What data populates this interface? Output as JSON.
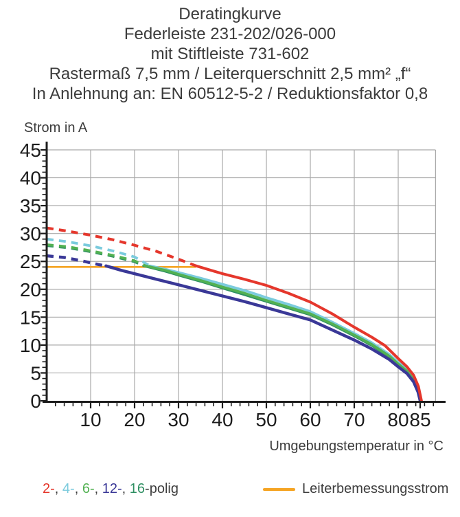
{
  "title": {
    "lines": [
      "Deratingkurve",
      "Federleiste 231-202/026-000",
      "mit Stiftleiste 731-602",
      "Rastermaß 7,5 mm / Leiterquerschnitt 2,5 mm² „f“",
      "In Anlehnung an: EN 60512-5-2 / Reduktionsfaktor 0,8"
    ]
  },
  "legend": {
    "poles": {
      "items": [
        {
          "label": "2-",
          "color": "#e5372c"
        },
        {
          "label": "4-",
          "color": "#7bcbdd"
        },
        {
          "label": "6-",
          "color": "#52b152"
        },
        {
          "label": "12-",
          "color": "#3a3897"
        },
        {
          "label": "16",
          "color": "#2e8f62"
        }
      ],
      "separator": ", ",
      "suffix": "-polig",
      "text_color": "#3e3e3e"
    },
    "rated": {
      "label": "Leiterbemessungsstrom",
      "color": "#f5a423"
    }
  },
  "chart_data": {
    "type": "line",
    "title": "Deratingkurve",
    "xlabel": "Umgebungstemperatur in °C",
    "ylabel": "Strom in A",
    "xlim": [
      0,
      88.5
    ],
    "ylim": [
      0,
      45
    ],
    "x_ticks": [
      10,
      20,
      30,
      40,
      50,
      60,
      70,
      80,
      85
    ],
    "y_ticks": [
      0,
      5,
      10,
      15,
      20,
      25,
      30,
      35,
      40,
      45
    ],
    "x_minor_step": 2,
    "y_minor_step": 1,
    "grid": true,
    "grid_color": "#a9a9a9",
    "axis_color": "#1c1c1c",
    "legend_position": "bottom",
    "rated_current_A": 24,
    "curve_note": "dashed = above rated conductor current (24 A), solid = usable derated range",
    "series": [
      {
        "name": "Leiterbemessungsstrom",
        "color": "#f5a423",
        "width": 2.6,
        "segments": [
          {
            "style": "solid",
            "points": [
              [
                0,
                24
              ],
              [
                33.8,
                24
              ]
            ]
          }
        ]
      },
      {
        "name": "16-polig",
        "color": "#2e8f62",
        "width": 3.2,
        "segments": [
          {
            "style": "dashed",
            "points": [
              [
                0,
                27.8
              ],
              [
                5,
                27.4
              ],
              [
                10,
                26.7
              ],
              [
                15,
                25.9
              ],
              [
                20,
                24.9
              ],
              [
                22,
                24.2
              ]
            ]
          },
          {
            "style": "solid",
            "points": [
              [
                22,
                24.2
              ],
              [
                27,
                23.2
              ],
              [
                30,
                22.5
              ],
              [
                35,
                21.4
              ],
              [
                40,
                20.2
              ],
              [
                45,
                19.0
              ],
              [
                50,
                17.8
              ],
              [
                55,
                16.6
              ],
              [
                60,
                15.4
              ],
              [
                65,
                13.6
              ],
              [
                70,
                11.6
              ],
              [
                74,
                9.9
              ],
              [
                78,
                7.8
              ],
              [
                80,
                6.4
              ],
              [
                82,
                5.1
              ],
              [
                83.5,
                3.6
              ],
              [
                84.6,
                1.5
              ],
              [
                85.05,
                0
              ]
            ]
          }
        ]
      },
      {
        "name": "4-polig",
        "color": "#7bcbdd",
        "width": 3.8,
        "segments": [
          {
            "style": "dashed",
            "points": [
              [
                0,
                29
              ],
              [
                5,
                28.5
              ],
              [
                10,
                27.8
              ],
              [
                15,
                26.9
              ],
              [
                20,
                25.8
              ],
              [
                23.5,
                24.2
              ]
            ]
          },
          {
            "style": "solid",
            "points": [
              [
                23.5,
                24.2
              ],
              [
                27,
                23.6
              ],
              [
                30,
                23.0
              ],
              [
                35,
                22.0
              ],
              [
                40,
                20.9
              ],
              [
                45,
                19.8
              ],
              [
                50,
                18.5
              ],
              [
                55,
                17.3
              ],
              [
                60,
                16.0
              ],
              [
                65,
                14.1
              ],
              [
                70,
                12.1
              ],
              [
                74,
                10.4
              ],
              [
                78,
                8.3
              ],
              [
                80,
                6.9
              ],
              [
                82,
                5.6
              ],
              [
                83.5,
                4.0
              ],
              [
                84.6,
                2.0
              ],
              [
                85.15,
                0
              ]
            ]
          }
        ]
      },
      {
        "name": "6-polig",
        "color": "#52b152",
        "width": 3.8,
        "segments": [
          {
            "style": "dashed",
            "points": [
              [
                0,
                28
              ],
              [
                5,
                27.6
              ],
              [
                10,
                26.9
              ],
              [
                15,
                26.1
              ],
              [
                20,
                25.1
              ],
              [
                22.5,
                24.2
              ]
            ]
          },
          {
            "style": "solid",
            "points": [
              [
                22.5,
                24.2
              ],
              [
                27,
                23.4
              ],
              [
                30,
                22.7
              ],
              [
                35,
                21.6
              ],
              [
                40,
                20.4
              ],
              [
                45,
                19.3
              ],
              [
                50,
                18.0
              ],
              [
                55,
                16.8
              ],
              [
                60,
                15.6
              ],
              [
                65,
                13.8
              ],
              [
                70,
                11.8
              ],
              [
                74,
                10.1
              ],
              [
                78,
                8.0
              ],
              [
                80,
                6.6
              ],
              [
                82,
                5.3
              ],
              [
                83.5,
                3.8
              ],
              [
                84.6,
                1.8
              ],
              [
                85.1,
                0
              ]
            ]
          }
        ]
      },
      {
        "name": "12-polig",
        "color": "#3a3897",
        "width": 4.4,
        "segments": [
          {
            "style": "dashed",
            "points": [
              [
                0,
                26
              ],
              [
                4,
                25.7
              ],
              [
                8,
                25.1
              ],
              [
                12,
                24.4
              ],
              [
                13.5,
                24.2
              ]
            ]
          },
          {
            "style": "solid",
            "points": [
              [
                13.5,
                24.2
              ],
              [
                17,
                23.4
              ],
              [
                20,
                22.8
              ],
              [
                25,
                21.8
              ],
              [
                30,
                20.8
              ],
              [
                35,
                19.8
              ],
              [
                40,
                18.8
              ],
              [
                45,
                17.8
              ],
              [
                50,
                16.7
              ],
              [
                55,
                15.6
              ],
              [
                60,
                14.5
              ],
              [
                65,
                12.7
              ],
              [
                70,
                10.9
              ],
              [
                74,
                9.3
              ],
              [
                78,
                7.4
              ],
              [
                80,
                6.1
              ],
              [
                82,
                4.9
              ],
              [
                83.5,
                3.4
              ],
              [
                84.5,
                1.6
              ],
              [
                85.0,
                0
              ]
            ]
          }
        ]
      },
      {
        "name": "2-polig",
        "color": "#e5372c",
        "width": 4.0,
        "segments": [
          {
            "style": "dashed",
            "points": [
              [
                0,
                31
              ],
              [
                5,
                30.4
              ],
              [
                10,
                29.7
              ],
              [
                15,
                28.9
              ],
              [
                20,
                27.9
              ],
              [
                25,
                26.8
              ],
              [
                30,
                25.4
              ],
              [
                34,
                24.2
              ]
            ]
          },
          {
            "style": "solid",
            "points": [
              [
                34,
                24.2
              ],
              [
                37,
                23.5
              ],
              [
                40,
                22.8
              ],
              [
                45,
                21.8
              ],
              [
                50,
                20.7
              ],
              [
                55,
                19.3
              ],
              [
                60,
                17.7
              ],
              [
                65,
                15.6
              ],
              [
                70,
                13.2
              ],
              [
                74,
                11.4
              ],
              [
                77,
                9.9
              ],
              [
                80,
                7.6
              ],
              [
                82,
                6.1
              ],
              [
                83.5,
                4.6
              ],
              [
                84.6,
                2.6
              ],
              [
                85.3,
                0
              ]
            ]
          }
        ]
      }
    ]
  }
}
